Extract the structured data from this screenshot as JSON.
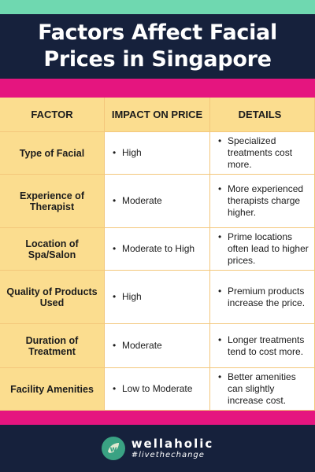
{
  "title": "Factors Affect Facial Prices in Singapore",
  "table": {
    "headers": [
      "FACTOR",
      "IMPACT ON PRICE",
      "DETAILS"
    ],
    "rows": [
      {
        "factor": "Type of Facial",
        "impact": "High",
        "details": "Specialized treatments cost more."
      },
      {
        "factor": "Experience of Therapist",
        "impact": "Moderate",
        "details": "More experienced therapists charge higher."
      },
      {
        "factor": "Location of Spa/Salon",
        "impact": "Moderate to High",
        "details": "Prime locations often lead to higher prices."
      },
      {
        "factor": "Quality of Products Used",
        "impact": "High",
        "details": "Premium products increase the price."
      },
      {
        "factor": "Duration of Treatment",
        "impact": "Moderate",
        "details": "Longer treatments tend to cost more."
      },
      {
        "factor": "Facility Amenities",
        "impact": "Low to Moderate",
        "details": "Better amenities can slightly increase cost."
      }
    ]
  },
  "footer": {
    "brand": "wellaholic",
    "tagline": "#livethechange",
    "logo_letter": "w",
    "logo_icon": "wellaholic-logo-icon"
  },
  "colors": {
    "navy": "#16213c",
    "mint": "#6fd8b0",
    "pink": "#e5157f",
    "yellow": "#fbdd8f",
    "logo_green": "#3aa283"
  }
}
